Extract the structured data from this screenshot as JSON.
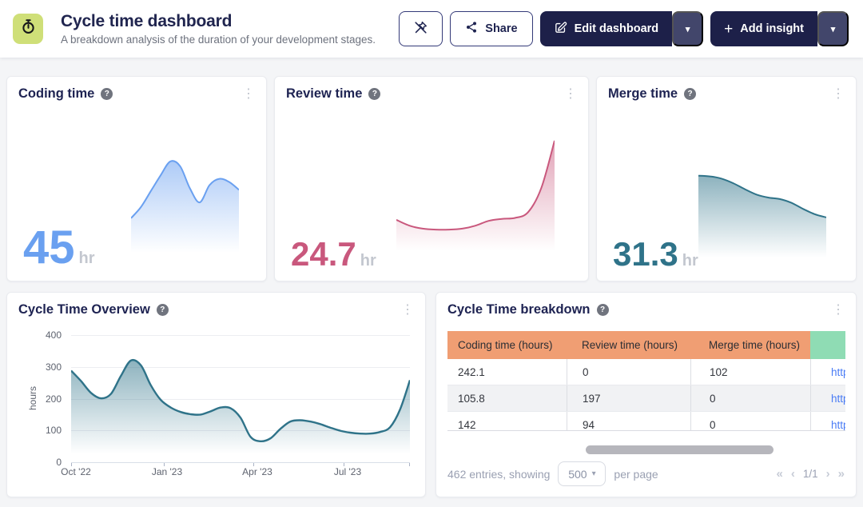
{
  "icons": {
    "help": "?",
    "kebab": "⋮",
    "caret": "▾",
    "plus": "+"
  },
  "header": {
    "title": "Cycle time dashboard",
    "subtitle": "A breakdown analysis of the duration of your development stages.",
    "logo_bg": "#cfdf78",
    "buttons": {
      "share": "Share",
      "edit": "Edit dashboard",
      "add": "Add insight"
    }
  },
  "cards": {
    "coding": {
      "title": "Coding time",
      "value": "45",
      "unit": "hr"
    },
    "review": {
      "title": "Review time",
      "value": "24.7",
      "unit": "hr"
    },
    "merge": {
      "title": "Merge time",
      "value": "31.3",
      "unit": "hr"
    },
    "overview": {
      "title": "Cycle Time Overview"
    },
    "breakdown": {
      "title": "Cycle Time breakdown"
    }
  },
  "chart_data": [
    {
      "key": "coding_spark",
      "type": "area",
      "title": "Coding time sparkline",
      "unit": "hr",
      "current": 45,
      "color": "#6aa0f0",
      "ylim": [
        0,
        66
      ],
      "values": [
        27,
        34,
        44,
        54,
        63,
        60,
        46,
        37,
        48,
        52,
        50,
        45
      ]
    },
    {
      "key": "review_spark",
      "type": "area",
      "title": "Review time sparkline",
      "unit": "hr",
      "current": 24.7,
      "color": "#c9587d",
      "ylim": [
        0,
        25.5
      ],
      "values": [
        8.4,
        7.2,
        6.6,
        6.4,
        6.4,
        6.6,
        7.2,
        8.2,
        8.6,
        8.8,
        10,
        15,
        24.7
      ]
    },
    {
      "key": "merge_spark",
      "type": "area",
      "title": "Merge time sparkline",
      "unit": "hr",
      "current": 31.3,
      "color": "#2f7389",
      "ylim": [
        0,
        62
      ],
      "values": [
        59,
        58.5,
        57,
        54,
        50,
        46.5,
        44.5,
        43.5,
        41,
        37,
        33.5,
        31.3
      ]
    },
    {
      "key": "overview",
      "type": "area",
      "title": "Cycle Time Overview",
      "xlabel": "",
      "ylabel": "hours",
      "color": "#2f7389",
      "ylim": [
        0,
        400
      ],
      "grid": true,
      "legend": false,
      "xticks": [
        "Oct '22",
        "Jan '23",
        "Apr '23",
        "Jul '23"
      ],
      "yticks": [
        "400",
        "300",
        "200",
        "100",
        "0"
      ],
      "values": [
        288,
        255,
        218,
        201,
        215,
        272,
        320,
        305,
        242,
        196,
        172,
        158,
        151,
        150,
        160,
        172,
        170,
        140,
        80,
        66,
        75,
        105,
        128,
        132,
        128,
        120,
        109,
        99,
        93,
        90,
        90,
        95,
        110,
        165,
        258
      ]
    }
  ],
  "table": {
    "header_bg": "#f09e73",
    "header_bg_last": "#8fdcb4",
    "link_color": "#4a7cf5",
    "columns": [
      "Coding time (hours)",
      "Review time (hours)",
      "Merge time (hours)",
      ""
    ],
    "rows": [
      [
        "242.1",
        "0",
        "102",
        "http"
      ],
      [
        "105.8",
        "197",
        "0",
        "http"
      ],
      [
        "142",
        "94",
        "0",
        "http"
      ]
    ]
  },
  "footer": {
    "entries_text": "462 entries, showing",
    "page_size": "500",
    "per_page_text": "per page",
    "pagination": {
      "first": "«",
      "prev": "‹",
      "indicator": "1/1",
      "next": "›",
      "last": "»"
    }
  }
}
